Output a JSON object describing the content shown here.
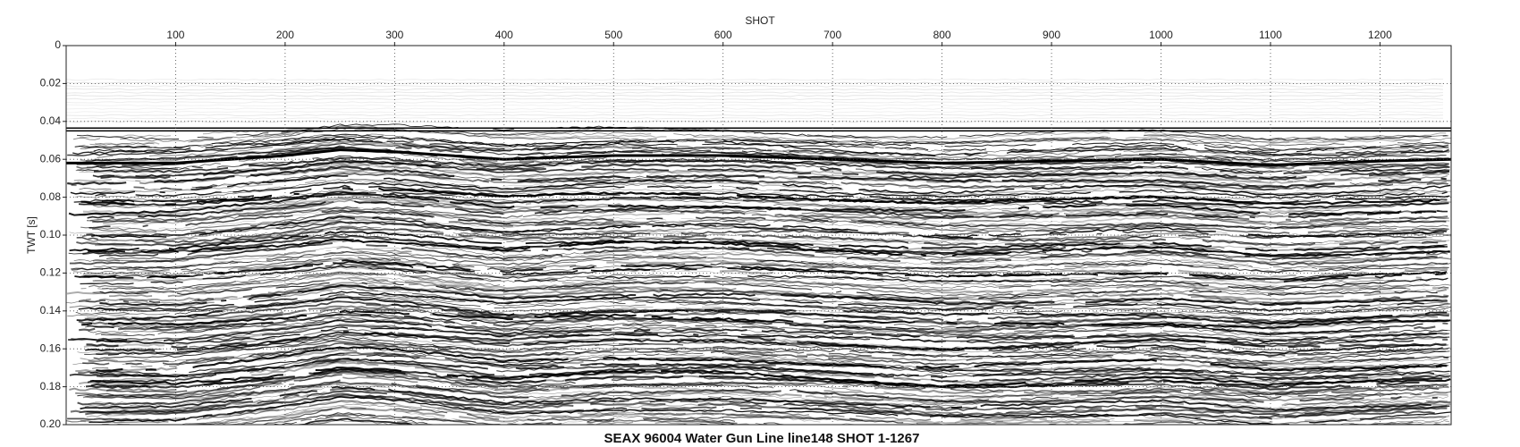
{
  "chart_data": {
    "type": "seismic",
    "title": "SEAX 96004 Water Gun Line line148 SHOT 1-1267",
    "x_label": "SHOT",
    "y_label": "TWT [s]",
    "x": [
      0,
      100,
      200,
      250,
      300,
      400,
      500,
      600,
      700,
      800,
      900,
      1000,
      1100,
      1200,
      1265
    ],
    "values": [
      0.062,
      0.062,
      0.058,
      0.055,
      0.056,
      0.06,
      0.058,
      0.058,
      0.06,
      0.062,
      0.061,
      0.06,
      0.063,
      0.061,
      0.06
    ],
    "color": "#000000",
    "xlim": [
      0,
      1265
    ],
    "xticks": [
      100,
      200,
      300,
      400,
      500,
      600,
      700,
      800,
      900,
      1000,
      1100,
      1200
    ],
    "ylim": [
      0,
      0.2
    ],
    "yticks": [
      0,
      0.02,
      0.04,
      0.06,
      0.08,
      {
        "value": 0.1,
        "label": "0.10"
      },
      0.12,
      0.14,
      0.16,
      0.18,
      {
        "value": 0.2,
        "label": "0.20"
      }
    ],
    "y_inverted": true,
    "grid": true
  }
}
